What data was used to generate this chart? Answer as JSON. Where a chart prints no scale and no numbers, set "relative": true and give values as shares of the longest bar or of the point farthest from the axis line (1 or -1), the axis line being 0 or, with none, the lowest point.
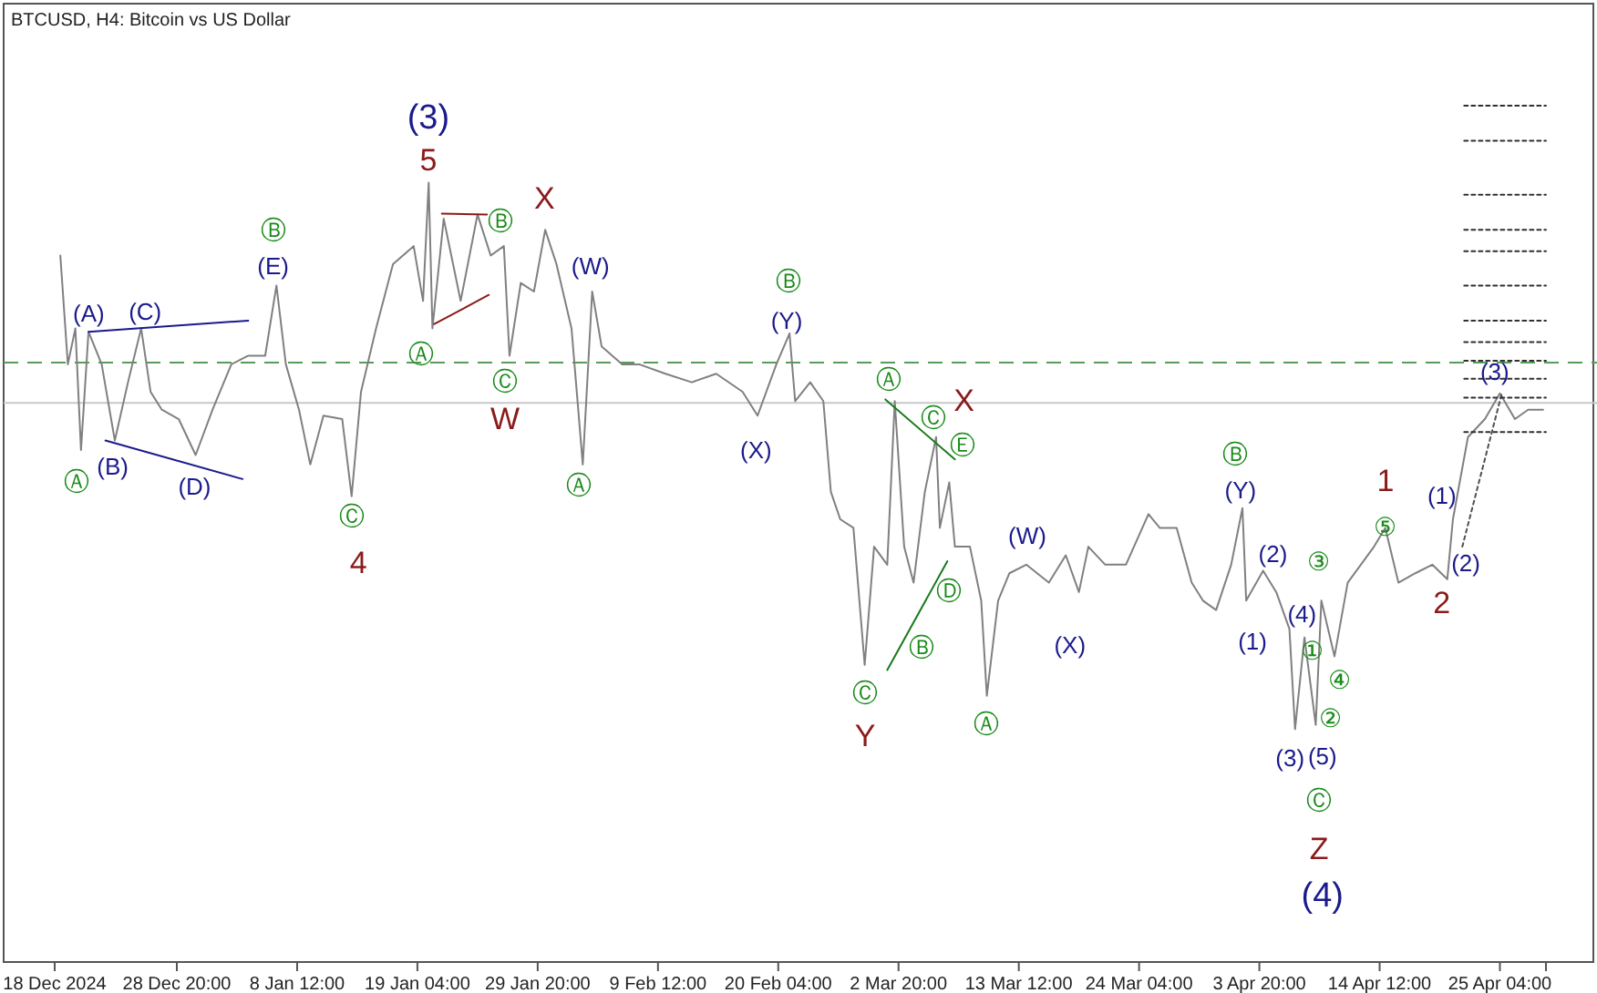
{
  "chart_data": {
    "type": "line",
    "title": "BTCUSD, H4:  Bitcoin vs US Dollar",
    "relative": true,
    "xlim": [
      "2024-12-18T00:00",
      "2025-04-29T06:00"
    ],
    "xticks": [
      {
        "value": "2024-12-18T00:00",
        "label": "18 Dec 2024"
      },
      {
        "value": "2024-12-28T20:00",
        "label": "28 Dec 20:00"
      },
      {
        "value": "2025-01-08T12:00",
        "label": "8 Jan 12:00"
      },
      {
        "value": "2025-01-19T04:00",
        "label": "19 Jan 04:00"
      },
      {
        "value": "2025-01-29T20:00",
        "label": "29 Jan 20:00"
      },
      {
        "value": "2025-02-09T12:00",
        "label": "9 Feb 12:00"
      },
      {
        "value": "2025-02-20T04:00",
        "label": "20 Feb 04:00"
      },
      {
        "value": "2025-03-02T20:00",
        "label": "2 Mar 20:00"
      },
      {
        "value": "2025-03-13T12:00",
        "label": "13 Mar 12:00"
      },
      {
        "value": "2025-03-24T04:00",
        "label": "24 Mar 04:00"
      },
      {
        "value": "2025-04-03T20:00",
        "label": "3 Apr 20:00"
      },
      {
        "value": "2025-04-14T12:00",
        "label": "14 Apr 12:00"
      },
      {
        "value": "2025-04-25T04:00",
        "label": "25 Apr 04:00"
      }
    ],
    "x": [
      "2024-12-18T12:00",
      "2024-12-19T04:00",
      "2024-12-19T20:00",
      "2024-12-20T08:00",
      "2024-12-21T00:00",
      "2024-12-22T04:00",
      "2024-12-23T08:00",
      "2024-12-24T12:00",
      "2024-12-25T16:00",
      "2024-12-26T12:00",
      "2024-12-27T12:00",
      "2024-12-29T00:00",
      "2024-12-30T12:00",
      "2025-01-01T00:00",
      "2025-01-02T16:00",
      "2025-01-04T04:00",
      "2025-01-05T16:00",
      "2025-01-06T16:00",
      "2025-01-07T12:00",
      "2025-01-08T16:00",
      "2025-01-09T16:00",
      "2025-01-10T20:00",
      "2025-01-12T12:00",
      "2025-01-13T08:00",
      "2025-01-14T04:00",
      "2025-01-15T12:00",
      "2025-01-17T00:00",
      "2025-01-18T20:00",
      "2025-01-19T16:00",
      "2025-01-20T04:00",
      "2025-01-20T12:00",
      "2025-01-21T12:00",
      "2025-01-23T00:00",
      "2025-01-24T12:00",
      "2025-01-25T16:00",
      "2025-01-26T20:00",
      "2025-01-27T08:00",
      "2025-01-28T08:00",
      "2025-01-29T12:00",
      "2025-01-30T12:00",
      "2025-01-31T12:00",
      "2025-02-01T20:00",
      "2025-02-02T20:00",
      "2025-02-03T16:00",
      "2025-02-04T12:00",
      "2025-02-06T08:00",
      "2025-02-07T20:00",
      "2025-02-10T04:00",
      "2025-02-12T12:00",
      "2025-02-14T16:00",
      "2025-02-17T00:00",
      "2025-02-18T08:00",
      "2025-02-20T00:00",
      "2025-02-21T04:00",
      "2025-02-21T16:00",
      "2025-02-23T00:00",
      "2025-02-24T04:00",
      "2025-02-24T20:00",
      "2025-02-25T16:00",
      "2025-02-26T20:00",
      "2025-02-27T20:00",
      "2025-02-28T16:00",
      "2025-03-01T20:00",
      "2025-03-02T12:00",
      "2025-03-03T08:00",
      "2025-03-04T04:00",
      "2025-03-05T04:00",
      "2025-03-06T04:00",
      "2025-03-06T12:00",
      "2025-03-07T08:00",
      "2025-03-07T20:00",
      "2025-03-09T04:00",
      "2025-03-10T04:00",
      "2025-03-10T16:00",
      "2025-03-11T16:00",
      "2025-03-12T16:00",
      "2025-03-14T04:00",
      "2025-03-16T04:00",
      "2025-03-17T16:00",
      "2025-03-18T20:00",
      "2025-03-19T16:00",
      "2025-03-21T04:00",
      "2025-03-23T00:00",
      "2025-03-25T00:00",
      "2025-03-26T00:00",
      "2025-03-27T12:00",
      "2025-03-28T20:00",
      "2025-03-29T20:00",
      "2025-03-31T00:00",
      "2025-04-01T08:00",
      "2025-04-02T08:00",
      "2025-04-02T16:00",
      "2025-04-04T04:00",
      "2025-04-05T08:00",
      "2025-04-06T12:00",
      "2025-04-07T00:00",
      "2025-04-07T20:00",
      "2025-04-08T20:00",
      "2025-04-09T08:00",
      "2025-04-10T12:00",
      "2025-04-11T16:00",
      "2025-04-12T20:00",
      "2025-04-14T00:00",
      "2025-04-15T00:00",
      "2025-04-16T04:00",
      "2025-04-17T16:00",
      "2025-04-19T04:00",
      "2025-04-20T12:00",
      "2025-04-21T00:00",
      "2025-04-22T08:00",
      "2025-04-23T20:00",
      "2025-04-25T04:00",
      "2025-04-26T12:00",
      "2025-04-27T16:00",
      "2025-04-29T00:00"
    ],
    "series": [
      {
        "color": "#808080",
        "values": [
          0.825,
          0.698,
          0.74,
          0.598,
          0.736,
          0.698,
          0.609,
          0.677,
          0.74,
          0.666,
          0.645,
          0.634,
          0.592,
          0.645,
          0.698,
          0.708,
          0.708,
          0.79,
          0.698,
          0.645,
          0.581,
          0.638,
          0.634,
          0.544,
          0.666,
          0.74,
          0.815,
          0.836,
          0.772,
          0.91,
          0.74,
          0.868,
          0.772,
          0.873,
          0.825,
          0.836,
          0.708,
          0.793,
          0.783,
          0.855,
          0.815,
          0.74,
          0.581,
          0.783,
          0.719,
          0.698,
          0.698,
          0.687,
          0.677,
          0.687,
          0.666,
          0.638,
          0.698,
          0.734,
          0.655,
          0.677,
          0.655,
          0.549,
          0.517,
          0.507,
          0.347,
          0.485,
          0.464,
          0.655,
          0.485,
          0.443,
          0.549,
          0.613,
          0.507,
          0.56,
          0.485,
          0.485,
          0.422,
          0.311,
          0.422,
          0.454,
          0.464,
          0.443,
          0.475,
          0.432,
          0.485,
          0.464,
          0.464,
          0.523,
          0.507,
          0.507,
          0.443,
          0.422,
          0.411,
          0.464,
          0.53,
          0.422,
          0.457,
          0.432,
          0.389,
          0.272,
          0.379,
          0.277,
          0.422,
          0.357,
          0.443,
          0.464,
          0.485,
          0.507,
          0.443,
          0.454,
          0.464,
          0.447,
          0.517,
          0.613,
          0.634,
          0.664,
          0.634,
          0.645,
          0.645
        ]
      },
      {
        "color": "#1a1a8c",
        "x": [
          "2024-12-21T00:00",
          "2025-01-04T04:00"
        ],
        "values": [
          0.736,
          0.749
        ]
      },
      {
        "color": "#1a1a8c",
        "x": [
          "2024-12-22T12:00",
          "2025-01-03T16:00"
        ],
        "values": [
          0.609,
          0.564
        ]
      },
      {
        "color": "#8b1a1a",
        "x": [
          "2025-01-21T08:00",
          "2025-01-25T08:00"
        ],
        "values": [
          0.874,
          0.873
        ]
      },
      {
        "color": "#8b1a1a",
        "x": [
          "2025-01-20T16:00",
          "2025-01-25T12:00"
        ],
        "values": [
          0.745,
          0.779
        ]
      },
      {
        "color": "#1a7a1a",
        "x": [
          "2025-03-01T16:00",
          "2025-03-07T20:00"
        ],
        "values": [
          0.657,
          0.587
        ]
      },
      {
        "color": "#1a7a1a",
        "x": [
          "2025-03-01T20:00",
          "2025-03-07T04:00"
        ],
        "values": [
          0.341,
          0.468
        ]
      },
      {
        "color": "#505050",
        "line_style": "dotted",
        "x": [
          "2025-04-21T20:00",
          "2025-04-25T08:00"
        ],
        "values": [
          0.485,
          0.664
        ]
      },
      {
        "color": "#303030",
        "line_style": "dotted",
        "x": [
          "2025-04-22T00:00",
          "2025-04-29T06:00"
        ],
        "values": [
          1.0,
          1.0
        ]
      },
      {
        "color": "#303030",
        "line_style": "dotted",
        "x": [
          "2025-04-22T00:00",
          "2025-04-29T06:00"
        ],
        "values": [
          0.959,
          0.959
        ]
      },
      {
        "color": "#303030",
        "line_style": "dotted",
        "x": [
          "2025-04-22T00:00",
          "2025-04-29T06:00"
        ],
        "values": [
          0.896,
          0.896
        ]
      },
      {
        "color": "#303030",
        "line_style": "dotted",
        "x": [
          "2025-04-22T00:00",
          "2025-04-29T06:00"
        ],
        "values": [
          0.855,
          0.855
        ]
      },
      {
        "color": "#303030",
        "line_style": "dotted",
        "x": [
          "2025-04-22T00:00",
          "2025-04-29T06:00"
        ],
        "values": [
          0.83,
          0.83
        ]
      },
      {
        "color": "#303030",
        "line_style": "dotted",
        "x": [
          "2025-04-22T00:00",
          "2025-04-29T06:00"
        ],
        "values": [
          0.79,
          0.79
        ]
      },
      {
        "color": "#303030",
        "line_style": "dotted",
        "x": [
          "2025-04-22T00:00",
          "2025-04-29T06:00"
        ],
        "values": [
          0.749,
          0.749
        ]
      },
      {
        "color": "#303030",
        "line_style": "dotted",
        "x": [
          "2025-04-22T00:00",
          "2025-04-29T06:00"
        ],
        "values": [
          0.724,
          0.724
        ]
      },
      {
        "color": "#303030",
        "line_style": "dotted",
        "x": [
          "2025-04-22T00:00",
          "2025-04-29T06:00"
        ],
        "values": [
          0.702,
          0.702
        ]
      },
      {
        "color": "#303030",
        "line_style": "dotted",
        "x": [
          "2025-04-22T00:00",
          "2025-04-29T06:00"
        ],
        "values": [
          0.681,
          0.681
        ]
      },
      {
        "color": "#303030",
        "line_style": "dotted",
        "x": [
          "2025-04-22T00:00",
          "2025-04-29T06:00"
        ],
        "values": [
          0.659,
          0.659
        ]
      },
      {
        "color": "#303030",
        "line_style": "dotted",
        "x": [
          "2025-04-22T00:00",
          "2025-04-29T06:00"
        ],
        "values": [
          0.619,
          0.619
        ]
      }
    ],
    "ref_lines": [
      {
        "axis": "y",
        "value": 0.7,
        "color": "#5a9a5a",
        "line_style": "dashed"
      },
      {
        "axis": "y",
        "value": 0.653,
        "color": "#c8c8c8",
        "line_style": "solid"
      }
    ],
    "annotations": [
      "Ⓐ",
      "(B)",
      "(A)",
      "(C)",
      "(D)",
      "Ⓑ",
      "(E)",
      "Ⓒ",
      "4",
      "(3)",
      "5",
      "Ⓐ",
      "Ⓑ",
      "Ⓒ",
      "W",
      "X",
      "(W)",
      "Ⓐ",
      "(X)",
      "Ⓑ",
      "(Y)",
      "Ⓐ",
      "Ⓒ",
      "X",
      "Ⓔ",
      "Ⓓ",
      "Ⓑ",
      "Ⓒ",
      "Y",
      "Ⓐ",
      "(W)",
      "(X)",
      "Ⓑ",
      "(Y)",
      "(2)",
      "(1)",
      "(4)",
      "③",
      "①",
      "④",
      "②",
      "(3)",
      "(5)",
      "Ⓒ",
      "Z",
      "(4)",
      "1",
      "⑤",
      "2",
      "(2)",
      "(1)",
      "(3)"
    ]
  }
}
